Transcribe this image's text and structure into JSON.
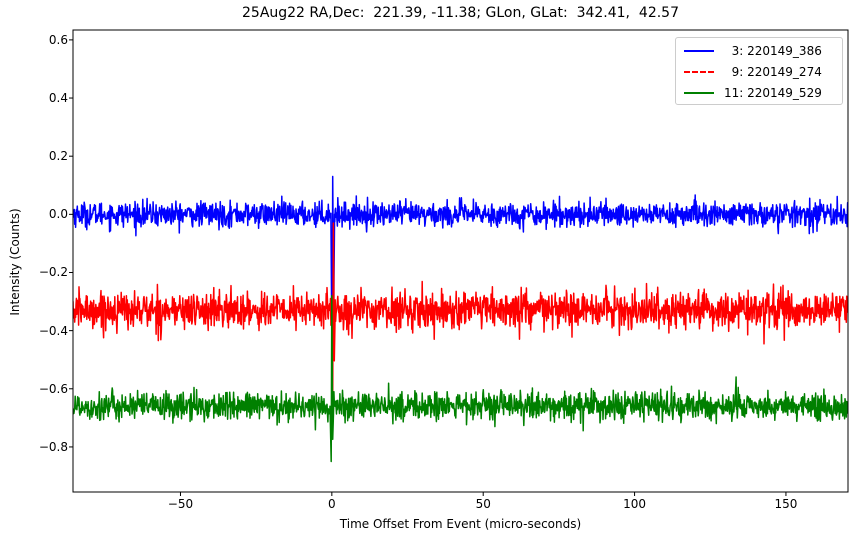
{
  "chart_data": {
    "type": "line",
    "title": "25Aug22 RA,Dec:  221.39, -11.38; GLon, GLat:  342.41,  42.57",
    "xlabel": "Time Offset From Event (micro-seconds)",
    "ylabel": "Intensity (Counts)",
    "xlim": [
      -85.5,
      170.5
    ],
    "ylim": [
      -0.955,
      0.634
    ],
    "xticks": [
      -50,
      0,
      50,
      100,
      150
    ],
    "xtick_labels": [
      "−50",
      "0",
      "50",
      "100",
      "150"
    ],
    "yticks": [
      0.6,
      0.4,
      0.2,
      0.0,
      -0.2,
      -0.4,
      -0.6,
      -0.8
    ],
    "ytick_labels": [
      "0.6",
      "0.4",
      "0.2",
      "0.0",
      "−0.2",
      "−0.4",
      "−0.6",
      "−0.8"
    ],
    "grid": false,
    "legend_position": "upper right",
    "series": [
      {
        "name": "3: 220149_386",
        "legend_label": "  3: 220149_386",
        "color": "#0000ff",
        "linestyle": "solid",
        "baseline": 0.0,
        "noise_amplitude": 0.03,
        "event_x": 0.3,
        "event_peak": 0.13,
        "event_trough": -0.55,
        "description": "noisy trace around 0.0, spike near t=0 reaching ~0.13"
      },
      {
        "name": "9: 220149_274",
        "legend_label": "  9: 220149_274",
        "color": "#ff0000",
        "linestyle": "dashdot",
        "baseline": -0.33,
        "noise_amplitude": 0.045,
        "event_x": 0.5,
        "event_peak": -0.03,
        "event_trough": -0.62,
        "description": "noisy trace around -0.33, spike near t=0 reaching ~-0.03"
      },
      {
        "name": "11: 220149_529",
        "legend_label": "11: 220149_529",
        "color": "#008000",
        "linestyle": "solid",
        "baseline": -0.66,
        "noise_amplitude": 0.035,
        "event_x": 0.0,
        "event_peak": -0.28,
        "event_trough": -0.85,
        "description": "noisy trace around -0.66, dip near t=0 reaching ~-0.85"
      }
    ]
  }
}
